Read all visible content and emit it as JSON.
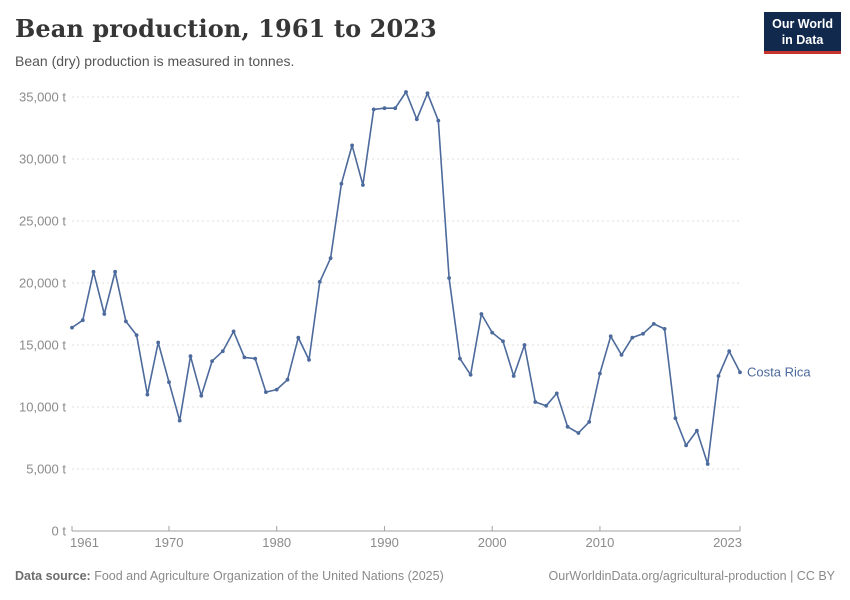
{
  "header": {
    "title": "Bean production, 1961 to 2023",
    "subtitle": "Bean (dry) production is measured in tonnes."
  },
  "logo": {
    "line1": "Our World",
    "line2": "in Data"
  },
  "chart_data": {
    "type": "line",
    "title": "Bean production, 1961 to 2023",
    "unit": "tonnes",
    "unit_suffix": " t",
    "grid": true,
    "legend_position": "end-of-line-label",
    "xlim": [
      1961,
      2023
    ],
    "ylim": [
      0,
      35000
    ],
    "yticks": [
      0,
      5000,
      10000,
      15000,
      20000,
      25000,
      30000,
      35000
    ],
    "xticks": [
      1961,
      1970,
      1980,
      1990,
      2000,
      2010,
      2023
    ],
    "x": [
      1961,
      1962,
      1963,
      1964,
      1965,
      1966,
      1967,
      1968,
      1969,
      1970,
      1971,
      1972,
      1973,
      1974,
      1975,
      1976,
      1977,
      1978,
      1979,
      1980,
      1981,
      1982,
      1983,
      1984,
      1985,
      1986,
      1987,
      1988,
      1989,
      1990,
      1991,
      1992,
      1993,
      1994,
      1995,
      1996,
      1997,
      1998,
      1999,
      2000,
      2001,
      2002,
      2003,
      2004,
      2005,
      2006,
      2007,
      2008,
      2009,
      2010,
      2011,
      2012,
      2013,
      2014,
      2015,
      2016,
      2017,
      2018,
      2019,
      2020,
      2021,
      2022,
      2023
    ],
    "series": [
      {
        "name": "Costa Rica",
        "color": "#4C6A9C",
        "values": [
          16400,
          17000,
          20900,
          17500,
          20900,
          16900,
          15800,
          11000,
          15200,
          12000,
          8900,
          14100,
          10900,
          13700,
          14500,
          16100,
          14000,
          13900,
          11200,
          11400,
          12200,
          15600,
          13800,
          20100,
          22000,
          28000,
          31100,
          27900,
          34000,
          34100,
          34100,
          35400,
          33200,
          35300,
          33100,
          20400,
          13900,
          12600,
          17500,
          16000,
          15300,
          12500,
          15000,
          10400,
          10100,
          11100,
          8400,
          7900,
          8800,
          12700,
          15700,
          14200,
          15600,
          15900,
          16700,
          16300,
          9100,
          6900,
          8100,
          5400,
          12500,
          14500,
          12800
        ]
      }
    ]
  },
  "footer": {
    "source_label": "Data source:",
    "source_text": "Food and Agriculture Organization of the United Nations (2025)",
    "credit": "OurWorldinData.org/agricultural-production | CC BY"
  },
  "colors": {
    "line": "#4C6A9C",
    "grid": "#dddddd",
    "axis": "#a1a1a1",
    "tick_label": "#8b8b8b",
    "logo_bg": "#12294e",
    "logo_accent": "#c9342f"
  }
}
